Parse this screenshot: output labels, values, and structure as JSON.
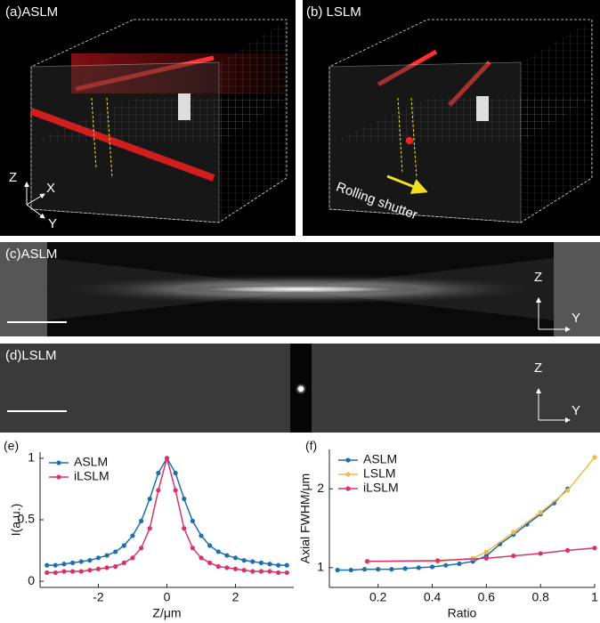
{
  "panels": {
    "a": {
      "label": "(a)ASLM",
      "axis_z": "Z",
      "axis_x": "X",
      "axis_y": "Y"
    },
    "b": {
      "label": "(b) LSLM",
      "annotation": "Rolling shutter"
    },
    "c": {
      "label": "(c)ASLM",
      "axis_z": "Z",
      "axis_y": "Y"
    },
    "d": {
      "label": "(d)LSLM",
      "axis_z": "Z",
      "axis_y": "Y"
    }
  },
  "chart_data": [
    {
      "type": "line",
      "panel_label": "(e)",
      "x_label": "Z/μm",
      "y_label": "I(a.u.)",
      "x": [
        -3.5,
        -3.25,
        -3,
        -2.75,
        -2.5,
        -2.25,
        -2,
        -1.75,
        -1.5,
        -1.25,
        -1,
        -0.75,
        -0.5,
        -0.25,
        0,
        0.25,
        0.5,
        0.75,
        1,
        1.25,
        1.5,
        1.75,
        2,
        2.25,
        2.5,
        2.75,
        3,
        3.25,
        3.5
      ],
      "series": [
        {
          "name": "ASLM",
          "color": "#1f6fae",
          "values": [
            0.13,
            0.13,
            0.14,
            0.15,
            0.16,
            0.17,
            0.19,
            0.21,
            0.24,
            0.29,
            0.37,
            0.49,
            0.67,
            0.88,
            1.0,
            0.88,
            0.67,
            0.49,
            0.37,
            0.29,
            0.24,
            0.21,
            0.19,
            0.17,
            0.16,
            0.15,
            0.14,
            0.13,
            0.13
          ]
        },
        {
          "name": "iLSLM",
          "color": "#d6336c",
          "values": [
            0.07,
            0.07,
            0.08,
            0.08,
            0.08,
            0.09,
            0.1,
            0.11,
            0.12,
            0.15,
            0.19,
            0.27,
            0.43,
            0.74,
            1.0,
            0.74,
            0.43,
            0.27,
            0.19,
            0.15,
            0.12,
            0.11,
            0.1,
            0.09,
            0.08,
            0.08,
            0.08,
            0.07,
            0.07
          ]
        }
      ],
      "xlim": [
        -3.7,
        3.7
      ],
      "ylim": [
        -0.05,
        1.05
      ],
      "xticks": [
        -2,
        0,
        2
      ],
      "yticks": [
        0,
        0.5,
        1
      ],
      "legend": "upper-left"
    },
    {
      "type": "line",
      "panel_label": "(f)",
      "x_label": "Ratio",
      "y_label": "Axial FWHM/μm",
      "series": [
        {
          "name": "ASLM",
          "color": "#1f6fae",
          "x": [
            0.05,
            0.1,
            0.15,
            0.2,
            0.25,
            0.3,
            0.35,
            0.4,
            0.45,
            0.5,
            0.55,
            0.6,
            0.65,
            0.7,
            0.75,
            0.8,
            0.85,
            0.9
          ],
          "values": [
            0.97,
            0.97,
            0.98,
            0.98,
            0.98,
            0.99,
            1.0,
            1.01,
            1.03,
            1.05,
            1.08,
            1.15,
            1.3,
            1.42,
            1.55,
            1.68,
            1.82,
            2.0
          ]
        },
        {
          "name": "LSLM",
          "color": "#f2b84b",
          "x": [
            0.16,
            0.42,
            0.55,
            0.6,
            0.7,
            0.8,
            0.9,
            1.0
          ],
          "values": [
            1.08,
            1.08,
            1.12,
            1.2,
            1.45,
            1.7,
            1.98,
            2.4
          ]
        },
        {
          "name": "iLSLM",
          "color": "#d6336c",
          "x": [
            0.16,
            0.42,
            0.6,
            0.7,
            0.8,
            0.9,
            1.0
          ],
          "values": [
            1.08,
            1.09,
            1.12,
            1.15,
            1.18,
            1.22,
            1.25
          ]
        }
      ],
      "xlim": [
        0.02,
        1.0
      ],
      "ylim": [
        0.75,
        2.5
      ],
      "xticks": [
        0.2,
        0.4,
        0.6,
        0.8,
        1
      ],
      "yticks": [
        1,
        2
      ],
      "legend": "upper-left"
    }
  ]
}
